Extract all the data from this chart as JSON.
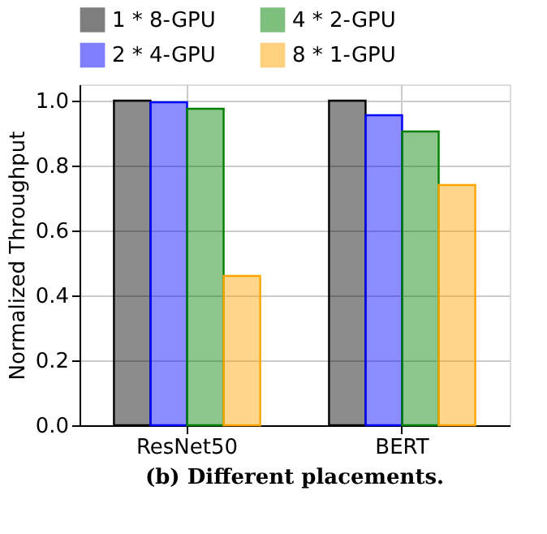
{
  "chart_data": {
    "type": "bar",
    "title": "(b) Different placements.",
    "ylabel": "Normalized Throughput",
    "categories": [
      "ResNet50",
      "BERT"
    ],
    "series": [
      {
        "name": "1 * 8-GPU",
        "color": "#000000",
        "values": [
          1.0,
          1.0
        ]
      },
      {
        "name": "2 * 4-GPU",
        "color": "#0000ff",
        "values": [
          0.995,
          0.955
        ]
      },
      {
        "name": "4 * 2-GPU",
        "color": "#008000",
        "values": [
          0.975,
          0.905
        ]
      },
      {
        "name": "8 * 1-GPU",
        "color": "#ffa500",
        "values": [
          0.46,
          0.74
        ]
      }
    ],
    "ylim": [
      0,
      1.05
    ],
    "yticks": [
      {
        "value": 0,
        "label": "0.0"
      },
      {
        "value": 0.2,
        "label": "0.2"
      },
      {
        "value": 0.4,
        "label": "0.4"
      },
      {
        "value": 0.6,
        "label": "0.6"
      },
      {
        "value": 0.8,
        "label": "0.8"
      },
      {
        "value": 1.0,
        "label": "1.0"
      }
    ],
    "grid": true,
    "legend": "top"
  }
}
